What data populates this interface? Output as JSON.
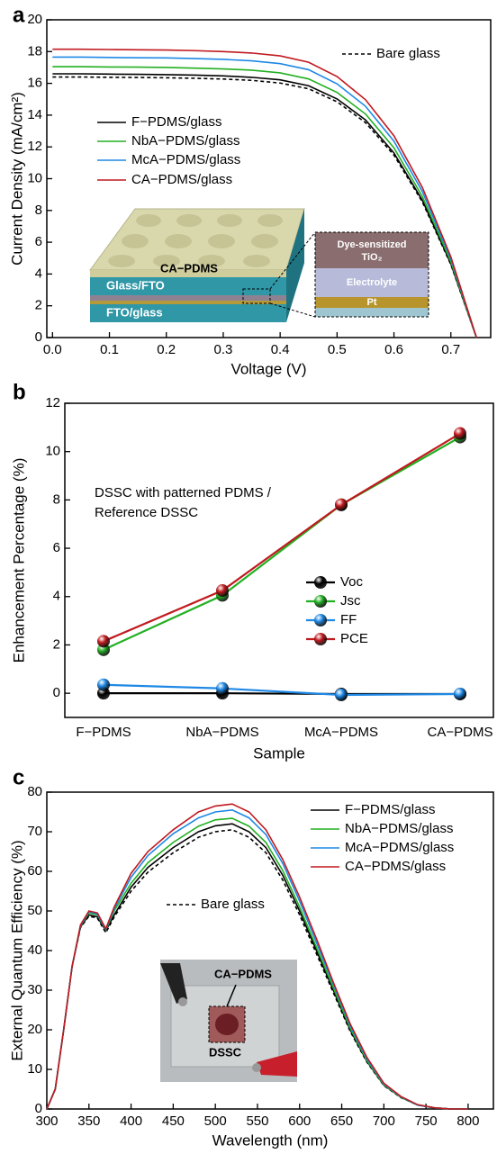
{
  "chart_data": [
    {
      "type": "line",
      "label": "a",
      "xlabel": "Voltage (V)",
      "ylabel": "Current Density (mA/cm²)",
      "x": [
        0,
        0.05,
        0.1,
        0.15,
        0.2,
        0.25,
        0.3,
        0.35,
        0.4,
        0.45,
        0.5,
        0.55,
        0.6,
        0.65,
        0.7,
        0.745
      ],
      "series": [
        {
          "name": "Bare glass",
          "color": "#000000",
          "linestyle": "dashed",
          "values": [
            16.4,
            16.4,
            16.38,
            16.37,
            16.35,
            16.32,
            16.27,
            16.19,
            16.02,
            15.66,
            14.84,
            13.53,
            11.48,
            8.53,
            4.59,
            0
          ]
        },
        {
          "name": "F−PDMS/glass",
          "color": "#000000",
          "linestyle": "solid",
          "values": [
            16.6,
            16.6,
            16.58,
            16.57,
            16.55,
            16.52,
            16.47,
            16.38,
            16.22,
            15.85,
            15.02,
            13.7,
            11.62,
            8.63,
            4.65,
            0
          ]
        },
        {
          "name": "NbA−PDMS/glass",
          "color": "#22b022",
          "linestyle": "solid",
          "values": [
            17.05,
            17.05,
            17.03,
            17.02,
            17.0,
            16.96,
            16.91,
            16.83,
            16.66,
            16.28,
            15.43,
            14.07,
            11.94,
            8.87,
            4.77,
            0
          ]
        },
        {
          "name": "McA−PDMS/glass",
          "color": "#1e88e5",
          "linestyle": "solid",
          "values": [
            17.65,
            17.65,
            17.63,
            17.61,
            17.6,
            17.56,
            17.51,
            17.42,
            17.24,
            16.86,
            15.97,
            14.56,
            12.36,
            9.18,
            4.94,
            0
          ]
        },
        {
          "name": "CA−PDMS/glass",
          "color": "#c0191e",
          "linestyle": "solid",
          "values": [
            18.15,
            18.15,
            18.13,
            18.11,
            18.1,
            18.06,
            18.0,
            17.91,
            17.73,
            17.33,
            16.43,
            14.97,
            12.7,
            9.44,
            5.08,
            0
          ]
        }
      ],
      "xlim": [
        -0.01,
        0.77
      ],
      "xticks": [
        {
          "value": 0,
          "label": "0.0"
        },
        0.1,
        0.2,
        0.3,
        0.4,
        0.5,
        0.6,
        0.7
      ],
      "ylim": [
        0,
        20
      ],
      "yticks": [
        0,
        2,
        4,
        6,
        8,
        10,
        12,
        14,
        16,
        18,
        20
      ],
      "inset_labels": [
        "CA−PDMS",
        "Glass/FTO",
        "FTO/glass",
        "Dye-sensitized",
        "TiO₂",
        "Electrolyte",
        "Pt"
      ]
    },
    {
      "type": "line",
      "label": "b",
      "xlabel": "Sample",
      "ylabel": "Enhancement Percentage (%)",
      "markers": true,
      "categories": [
        "F−PDMS",
        "NbA−PDMS",
        "McA−PDMS",
        "CA−PDMS"
      ],
      "series": [
        {
          "name": "Voc",
          "color": "#000000",
          "values": [
            0,
            0,
            -0.03,
            -0.03
          ]
        },
        {
          "name": "Jsc",
          "color": "#22b022",
          "values": [
            1.8,
            4.05,
            7.8,
            10.6
          ]
        },
        {
          "name": "FF",
          "color": "#1e88e5",
          "values": [
            0.35,
            0.2,
            -0.07,
            -0.03
          ]
        },
        {
          "name": "PCE",
          "color": "#c0191e",
          "values": [
            2.15,
            4.25,
            7.8,
            10.75
          ]
        }
      ],
      "ylim": [
        -1,
        12
      ],
      "yticks": [
        0,
        2,
        4,
        6,
        8,
        10,
        12
      ],
      "annotations": [
        "DSSC with patterned PDMS /",
        "Reference DSSC"
      ]
    },
    {
      "type": "line",
      "label": "c",
      "xlabel": "Wavelength (nm)",
      "ylabel": "External Quantum Efficiency (%)",
      "x": [
        300,
        310,
        320,
        330,
        340,
        350,
        360,
        370,
        380,
        400,
        420,
        450,
        480,
        500,
        520,
        540,
        560,
        580,
        600,
        620,
        640,
        660,
        680,
        700,
        720,
        740,
        760,
        780,
        800
      ],
      "series": [
        {
          "name": "Bare glass",
          "color": "#000000",
          "linestyle": "dashed",
          "values": [
            0,
            5,
            20,
            36,
            45.8,
            48.7,
            48.2,
            44.5,
            48.5,
            55,
            59.8,
            64.7,
            68.6,
            70,
            70.5,
            68.6,
            64.7,
            57.8,
            49,
            39.2,
            29.4,
            19.6,
            11.8,
            5.9,
            2.9,
            1,
            0.3,
            0,
            0
          ]
        },
        {
          "name": "F−PDMS/glass",
          "color": "#000000",
          "linestyle": "solid",
          "values": [
            0,
            5,
            20,
            36,
            46,
            49,
            48.5,
            45,
            49,
            56,
            61,
            66,
            70,
            71.5,
            72,
            70,
            66,
            59,
            50,
            40,
            30,
            20,
            12,
            6,
            3,
            1,
            0.3,
            0,
            0
          ]
        },
        {
          "name": "NbA−PDMS/glass",
          "color": "#22b022",
          "linestyle": "solid",
          "values": [
            0,
            5,
            20,
            36,
            46.2,
            49.5,
            49,
            45.2,
            50,
            57,
            62.2,
            67.3,
            71.4,
            73,
            73.4,
            71.4,
            67.3,
            60.2,
            51,
            40.8,
            30.6,
            20.4,
            12.2,
            6.1,
            3,
            1,
            0.3,
            0,
            0
          ]
        },
        {
          "name": "McA−PDMS/glass",
          "color": "#1e88e5",
          "linestyle": "solid",
          "values": [
            0,
            5,
            20,
            36,
            46.3,
            49.8,
            49.2,
            45.3,
            50.5,
            58.5,
            64,
            69.5,
            73.5,
            75,
            75.5,
            73.5,
            69.3,
            62,
            52.5,
            42,
            31.5,
            21,
            12.6,
            6.3,
            3.1,
            1,
            0.3,
            0,
            0
          ]
        },
        {
          "name": "CA−PDMS/glass",
          "color": "#c0191e",
          "linestyle": "solid",
          "values": [
            0,
            5,
            20,
            36,
            46.5,
            50,
            49.5,
            45.5,
            51,
            59.5,
            65,
            70.5,
            75,
            76.5,
            77,
            75,
            70.5,
            63,
            53.5,
            43,
            32,
            21.5,
            13,
            6.5,
            3.2,
            1.1,
            0.3,
            0,
            0
          ]
        }
      ],
      "xlim": [
        300,
        830
      ],
      "xticks": [
        300,
        350,
        400,
        450,
        500,
        550,
        600,
        650,
        700,
        750,
        800
      ],
      "ylim": [
        0,
        80
      ],
      "yticks": [
        0,
        10,
        20,
        30,
        40,
        50,
        60,
        70,
        80
      ],
      "inset_labels": [
        "CA−PDMS",
        "DSSC"
      ]
    }
  ]
}
